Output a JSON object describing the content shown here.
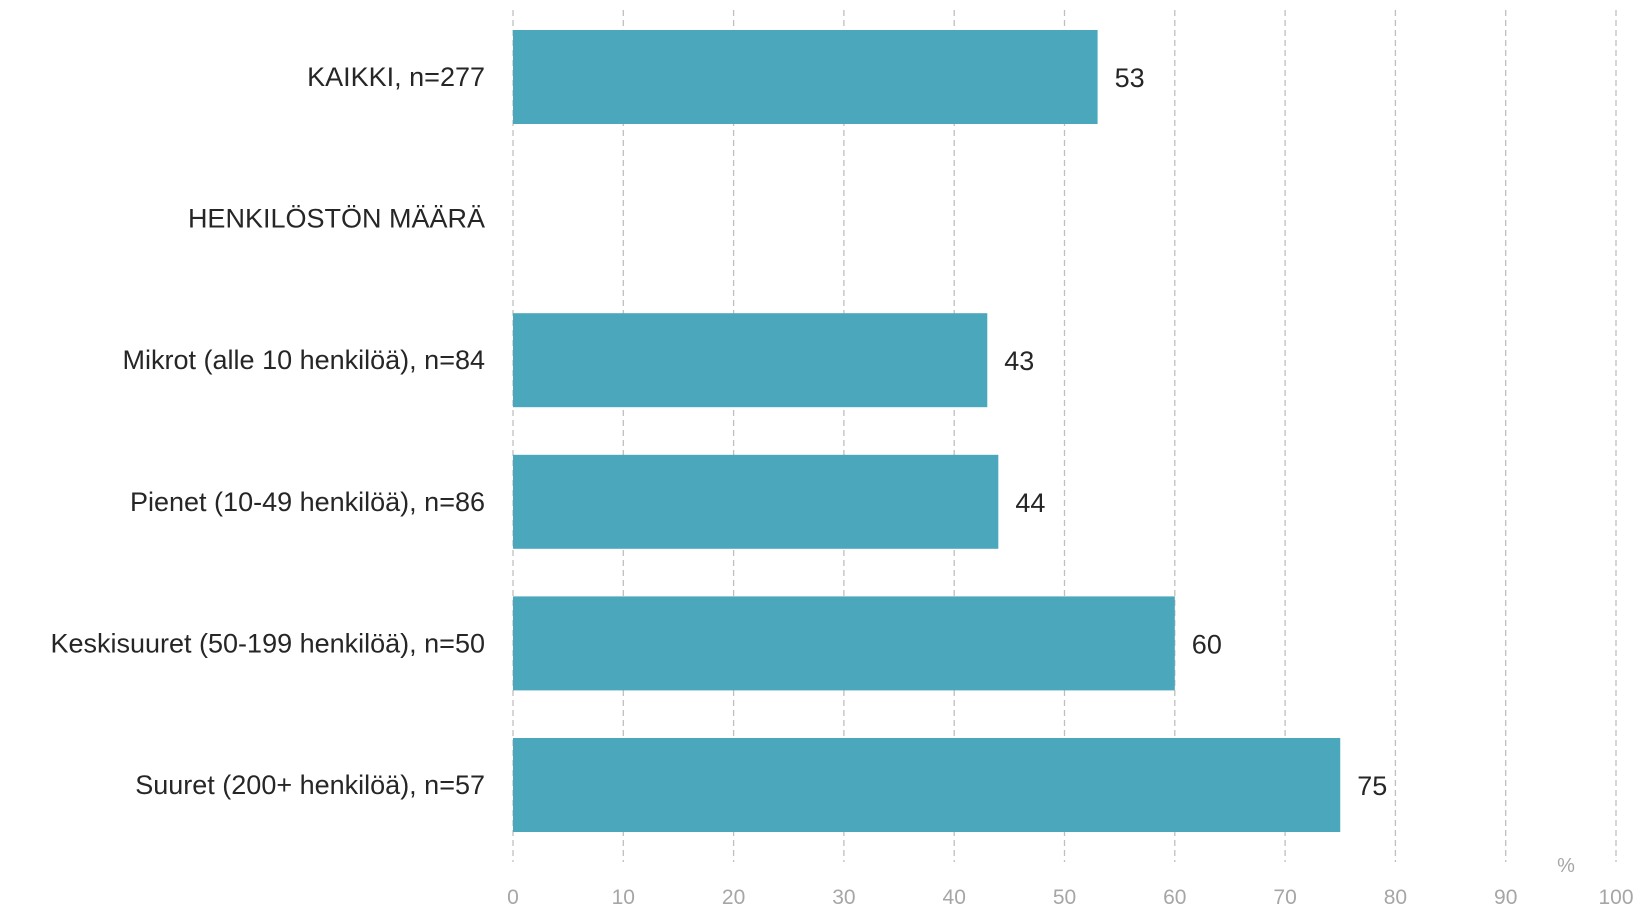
{
  "chart_data": {
    "type": "bar",
    "orientation": "horizontal",
    "categories": [
      "KAIKKI, n=277",
      "HENKILÖSTÖN MÄÄRÄ",
      "Mikrot (alle 10 henkilöä), n=84",
      "Pienet (10-49 henkilöä), n=86",
      "Keskisuuret (50-199 henkilöä), n=50",
      "Suuret (200+ henkilöä), n=57"
    ],
    "values": [
      53,
      null,
      43,
      44,
      60,
      75
    ],
    "value_labels": [
      "53",
      "",
      "43",
      "44",
      "60",
      "75"
    ],
    "xlim": [
      0,
      100
    ],
    "xticks": [
      "0",
      "10",
      "20",
      "30",
      "40",
      "50",
      "60",
      "70",
      "80",
      "90",
      "100"
    ],
    "x_unit": "%",
    "grid": "vertical dashed",
    "bar_color": "#4ba7bc",
    "grid_color": "#bfbfbf",
    "tick_color": "#a6a6a6",
    "text_color": "#262626"
  }
}
